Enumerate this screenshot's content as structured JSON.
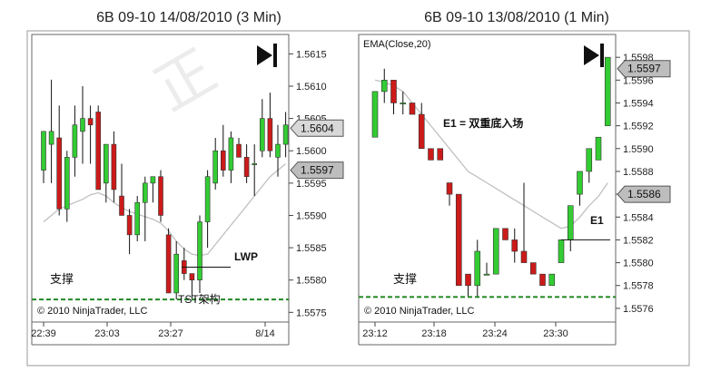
{
  "chart_data": [
    {
      "type": "candlestick",
      "title": "6B 09-10  14/08/2010 (3 Min)",
      "indicator_label": "",
      "watermark": "正",
      "copyright": "© 2010 NinjaTrader, LLC",
      "colors": {
        "up": "#33cc33",
        "down": "#cc1a1a",
        "ema": "#c0c0c0",
        "support": "#228822"
      },
      "ylim": [
        1.55735,
        1.5618
      ],
      "y_ticks": [
        "1.5615",
        "1.5610",
        "1.5605",
        "1.5600",
        "1.5595",
        "1.5590",
        "1.5585",
        "1.5580",
        "1.5575"
      ],
      "x_ticks": [
        "22:39",
        "23:03",
        "23:27",
        "8/14"
      ],
      "price_tags": [
        {
          "label": "1.5604",
          "value": 1.56035,
          "style": "light"
        },
        {
          "label": "1.5597",
          "value": 1.5597,
          "style": "dark"
        }
      ],
      "annotations": [
        {
          "id": "lwp",
          "text": "LWP"
        },
        {
          "id": "support",
          "text": "支撑"
        },
        {
          "id": "tst",
          "text": "TST架构"
        }
      ],
      "support_level": 1.5577,
      "lwp_level": 1.5582,
      "candles": [
        [
          1.5597,
          1.5603,
          1.5595,
          1.5603
        ],
        [
          1.5601,
          1.5611,
          1.5595,
          1.5603
        ],
        [
          1.5602,
          1.5607,
          1.559,
          1.5591
        ],
        [
          1.5591,
          1.56,
          1.5589,
          1.5599
        ],
        [
          1.5599,
          1.5607,
          1.5596,
          1.5604
        ],
        [
          1.5603,
          1.561,
          1.5598,
          1.5605
        ],
        [
          1.5605,
          1.5607,
          1.5598,
          1.5604
        ],
        [
          1.5606,
          1.5607,
          1.5594,
          1.5594
        ],
        [
          1.5595,
          1.5601,
          1.5592,
          1.5601
        ],
        [
          1.5601,
          1.5603,
          1.5592,
          1.5594
        ],
        [
          1.5593,
          1.5598,
          1.559,
          1.559
        ],
        [
          1.559,
          1.5591,
          1.5584,
          1.5587
        ],
        [
          1.5587,
          1.5593,
          1.5586,
          1.5592
        ],
        [
          1.5592,
          1.5596,
          1.5586,
          1.5595
        ],
        [
          1.5595,
          1.5596,
          1.5592,
          1.5596
        ],
        [
          1.5596,
          1.5597,
          1.5589,
          1.559
        ],
        [
          1.5587,
          1.5588,
          1.5578,
          1.5578
        ],
        [
          1.5578,
          1.5586,
          1.5577,
          1.5584
        ],
        [
          1.5583,
          1.5585,
          1.558,
          1.5581
        ],
        [
          1.5581,
          1.5581,
          1.5577,
          1.558
        ],
        [
          1.558,
          1.559,
          1.5578,
          1.5589
        ],
        [
          1.5589,
          1.5597,
          1.5585,
          1.5596
        ],
        [
          1.5595,
          1.5602,
          1.5594,
          1.56
        ],
        [
          1.56,
          1.5604,
          1.5596,
          1.5597
        ],
        [
          1.5597,
          1.5603,
          1.5595,
          1.5602
        ],
        [
          1.5601,
          1.5602,
          1.5599,
          1.5599
        ],
        [
          1.5599,
          1.5601,
          1.5595,
          1.5596
        ],
        [
          1.5598,
          1.5601,
          1.5593,
          1.5598
        ],
        [
          1.56,
          1.5608,
          1.5599,
          1.5605
        ],
        [
          1.5605,
          1.5609,
          1.5599,
          1.56
        ],
        [
          1.5599,
          1.5604,
          1.5596,
          1.5601
        ],
        [
          1.5601,
          1.5606,
          1.5599,
          1.5604
        ]
      ],
      "ema": [
        1.5589,
        1.559,
        1.5591,
        1.55915,
        1.5592,
        1.55925,
        1.55932,
        1.55935,
        1.5593,
        1.5592,
        1.55912,
        1.55906,
        1.55902,
        1.55898,
        1.55894,
        1.55888,
        1.55876,
        1.5586,
        1.55848,
        1.5584,
        1.55838,
        1.5584,
        1.55855,
        1.5587,
        1.55885,
        1.559,
        1.55915,
        1.5593,
        1.55945,
        1.5596,
        1.5597,
        1.5598
      ]
    },
    {
      "type": "candlestick",
      "title": "6B 09-10  13/08/2010 (1 Min)",
      "indicator_label": "EMA(Close,20)",
      "copyright": "© 2010 NinjaTrader, LLC",
      "colors": {
        "up": "#33cc33",
        "down": "#cc1a1a",
        "ema": "#c0c0c0",
        "support": "#228822"
      },
      "ylim": [
        1.55748,
        1.56
      ],
      "y_ticks": [
        "1.5598",
        "1.5596",
        "1.5594",
        "1.5592",
        "1.5590",
        "1.5588",
        "1.5586",
        "1.5584",
        "1.5582",
        "1.5580",
        "1.5578",
        "1.5576"
      ],
      "x_ticks": [
        "23:12",
        "23:18",
        "23:24",
        "23:30"
      ],
      "price_tags": [
        {
          "label": "1.5597",
          "value": 1.5597,
          "style": "dark"
        },
        {
          "label": "1.5586",
          "value": 1.5586,
          "style": "dark"
        }
      ],
      "annotations": [
        {
          "id": "e1-note",
          "text": "E1 = 双重底入场"
        },
        {
          "id": "e1",
          "text": "E1"
        },
        {
          "id": "support",
          "text": "支撑"
        }
      ],
      "support_level": 1.5577,
      "e1_level": 1.5582,
      "candles": [
        [
          1.5591,
          1.5595,
          1.5591,
          1.5595
        ],
        [
          1.5595,
          1.5597,
          1.5594,
          1.5596
        ],
        [
          1.5596,
          1.5596,
          1.5593,
          1.5594
        ],
        [
          1.5594,
          1.5595,
          1.5593,
          1.5594
        ],
        [
          1.5594,
          1.5594,
          1.5593,
          1.5593
        ],
        [
          1.5593,
          1.5594,
          1.559,
          1.559
        ],
        [
          1.559,
          1.559,
          1.5589,
          1.5589
        ],
        [
          1.559,
          1.559,
          1.5589,
          1.5589
        ],
        [
          1.5587,
          1.5587,
          1.5585,
          1.5586
        ],
        [
          1.5586,
          1.5586,
          1.5578,
          1.5578
        ],
        [
          1.5579,
          1.5579,
          1.5577,
          1.5578
        ],
        [
          1.5578,
          1.5582,
          1.5577,
          1.5581
        ],
        [
          1.5579,
          1.558,
          1.5579,
          1.5579
        ],
        [
          1.5579,
          1.5583,
          1.5579,
          1.5583
        ],
        [
          1.5583,
          1.5583,
          1.5582,
          1.5582
        ],
        [
          1.5582,
          1.5583,
          1.558,
          1.5581
        ],
        [
          1.5581,
          1.5587,
          1.558,
          1.558
        ],
        [
          1.558,
          1.558,
          1.5579,
          1.5579
        ],
        [
          1.5579,
          1.5579,
          1.5578,
          1.5578
        ],
        [
          1.5578,
          1.5579,
          1.5578,
          1.5579
        ],
        [
          1.558,
          1.5582,
          1.558,
          1.5582
        ],
        [
          1.5582,
          1.5585,
          1.5581,
          1.5585
        ],
        [
          1.5586,
          1.5588,
          1.5585,
          1.5588
        ],
        [
          1.5588,
          1.559,
          1.5587,
          1.559
        ],
        [
          1.5589,
          1.5591,
          1.5589,
          1.5591
        ],
        [
          1.5592,
          1.5598,
          1.5592,
          1.5598
        ]
      ],
      "ema": [
        1.5596,
        1.55958,
        1.55955,
        1.5595,
        1.5594,
        1.5593,
        1.5592,
        1.5591,
        1.559,
        1.5589,
        1.5588,
        1.55875,
        1.5587,
        1.55865,
        1.5586,
        1.55855,
        1.5585,
        1.55845,
        1.5584,
        1.55835,
        1.5583,
        1.55832,
        1.5584,
        1.5585,
        1.55858,
        1.5587
      ]
    }
  ]
}
